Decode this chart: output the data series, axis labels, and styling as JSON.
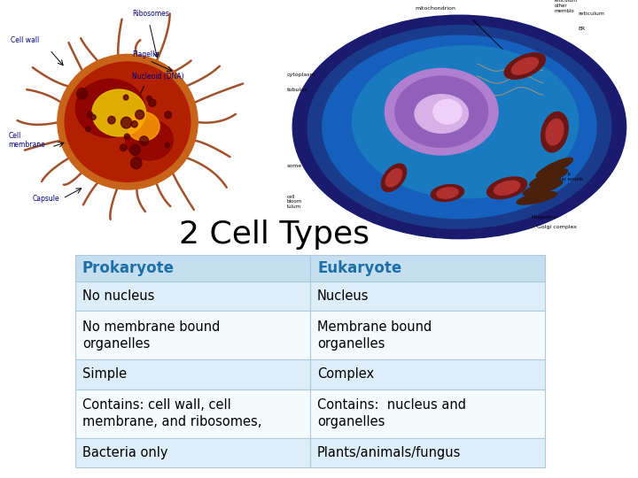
{
  "title": "2 Cell Types",
  "title_fontsize": 26,
  "background_color": "#ffffff",
  "header_row": [
    "Prokaryote",
    "Eukaryote"
  ],
  "header_bg_color": "#c5dff0",
  "header_text_color": "#1e6fa8",
  "header_fontsize": 12,
  "body_rows": [
    [
      "No nucleus",
      "Nucleus"
    ],
    [
      "No membrane bound\norganelles",
      "Membrane bound\norganelles"
    ],
    [
      "Simple",
      "Complex"
    ],
    [
      "Contains: cell wall, cell\nmembrane, and ribosomes,",
      "Contains:  nucleus and\norganelles"
    ],
    [
      "Bacteria only",
      "Plants/animals/fungus"
    ]
  ],
  "row_colors": [
    "#ddeef8",
    "#f5fafd",
    "#ddeef8",
    "#f5fafd",
    "#ddeef8"
  ],
  "body_text_color": "#000000",
  "body_fontsize": 10.5,
  "cell_border_color": "#aec8dc"
}
